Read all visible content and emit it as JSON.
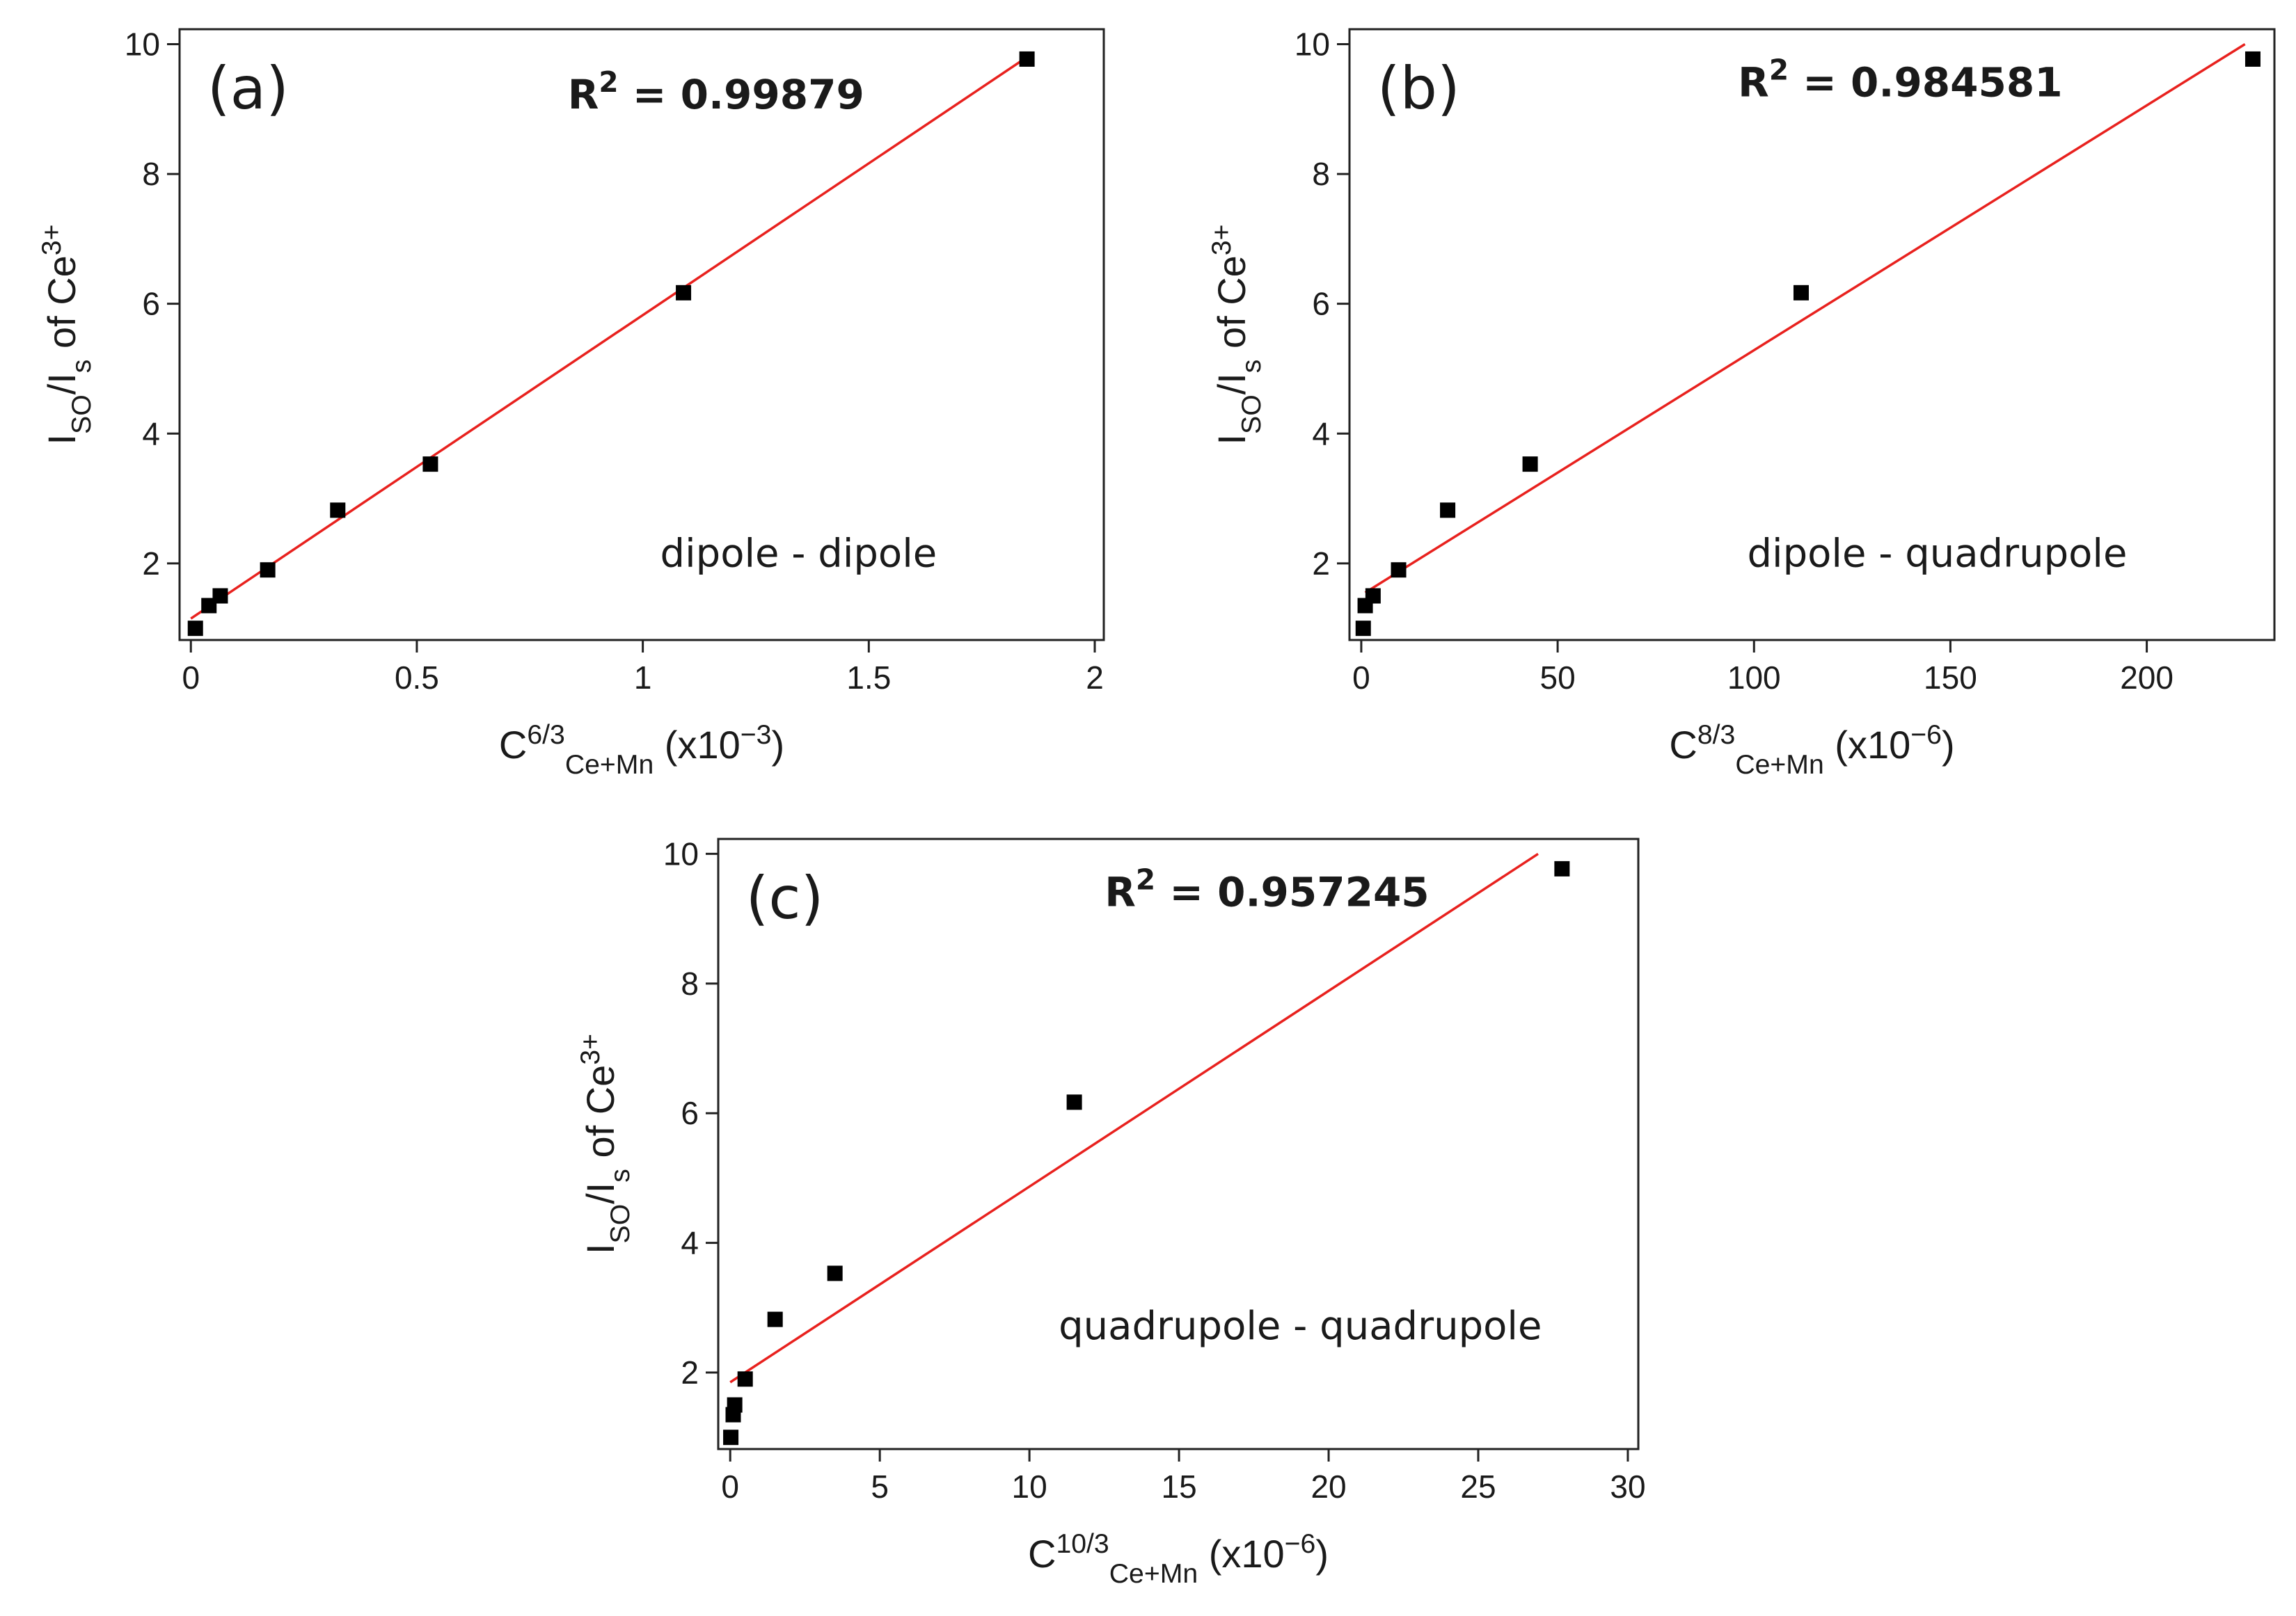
{
  "chart_data": [
    {
      "type": "scatter",
      "panel_label": "(a)",
      "r2_parts": [
        {
          "text": "R"
        },
        {
          "text": "2",
          "pos": "sup"
        },
        {
          "text": " = 0.99879"
        }
      ],
      "annotation": "dipole - dipole",
      "xlabel_parts": [
        {
          "text": "C"
        },
        {
          "text": "6/3",
          "pos": "sup"
        },
        {
          "text": "Ce+Mn",
          "pos": "sub"
        },
        {
          "text": " (x10"
        },
        {
          "text": "−3",
          "pos": "sup"
        },
        {
          "text": ")"
        }
      ],
      "ylabel_parts": [
        {
          "text": "I"
        },
        {
          "text": "SO",
          "pos": "sub"
        },
        {
          "text": "/I"
        },
        {
          "text": "s",
          "pos": "sub"
        },
        {
          "text": " of Ce"
        },
        {
          "text": "3+",
          "pos": "sup"
        }
      ],
      "x": [
        0.01,
        0.04,
        0.065,
        0.17,
        0.325,
        0.53,
        1.09,
        1.85
      ],
      "values": [
        1.0,
        1.35,
        1.5,
        1.9,
        2.82,
        3.53,
        6.17,
        9.77
      ],
      "color": "#000000",
      "fit": {
        "x": [
          0.0,
          1.85
        ],
        "y": [
          1.15,
          9.8
        ],
        "color": "#e8211e"
      },
      "xlim": [
        -0.025,
        2.02
      ],
      "ylim": [
        0.82,
        10.23
      ],
      "xticks": [
        0,
        0.5,
        1,
        1.5,
        2
      ],
      "yticks": [
        2,
        4,
        6,
        8,
        10
      ]
    },
    {
      "type": "scatter",
      "panel_label": "(b)",
      "r2_parts": [
        {
          "text": "R"
        },
        {
          "text": "2",
          "pos": "sup"
        },
        {
          "text": " = 0.984581"
        }
      ],
      "annotation": "dipole - quadrupole",
      "xlabel_parts": [
        {
          "text": "C"
        },
        {
          "text": "8/3",
          "pos": "sup"
        },
        {
          "text": "Ce+Mn",
          "pos": "sub"
        },
        {
          "text": " (x10"
        },
        {
          "text": "−6",
          "pos": "sup"
        },
        {
          "text": ")"
        }
      ],
      "ylabel_parts": [
        {
          "text": "I"
        },
        {
          "text": "SO",
          "pos": "sub"
        },
        {
          "text": "/I"
        },
        {
          "text": "s",
          "pos": "sub"
        },
        {
          "text": " of Ce"
        },
        {
          "text": "3+",
          "pos": "sup"
        }
      ],
      "x": [
        0.5,
        1,
        3,
        9.5,
        22,
        43,
        112,
        227
      ],
      "values": [
        1.0,
        1.35,
        1.5,
        1.9,
        2.82,
        3.53,
        6.17,
        9.77
      ],
      "color": "#000000",
      "fit": {
        "x": [
          1,
          225
        ],
        "y": [
          1.55,
          10.0
        ],
        "color": "#e8211e"
      },
      "xlim": [
        -3,
        232.5
      ],
      "ylim": [
        0.82,
        10.23
      ],
      "xticks": [
        0,
        50,
        100,
        150,
        200
      ],
      "yticks": [
        2,
        4,
        6,
        8,
        10
      ]
    },
    {
      "type": "scatter",
      "panel_label": "(c)",
      "r2_parts": [
        {
          "text": "R"
        },
        {
          "text": "2",
          "pos": "sup"
        },
        {
          "text": " = 0.957245"
        }
      ],
      "annotation": "quadrupole - quadrupole",
      "xlabel_parts": [
        {
          "text": "C"
        },
        {
          "text": "10/3",
          "pos": "sup"
        },
        {
          "text": "Ce+Mn",
          "pos": "sub"
        },
        {
          "text": " (x10"
        },
        {
          "text": "−6",
          "pos": "sup"
        },
        {
          "text": ")"
        }
      ],
      "ylabel_parts": [
        {
          "text": "I"
        },
        {
          "text": "SO",
          "pos": "sub"
        },
        {
          "text": "/I"
        },
        {
          "text": "s",
          "pos": "sub"
        },
        {
          "text": " of Ce"
        },
        {
          "text": "3+",
          "pos": "sup"
        }
      ],
      "x": [
        0.02,
        0.1,
        0.15,
        0.5,
        1.5,
        3.5,
        11.5,
        27.8
      ],
      "values": [
        1.0,
        1.35,
        1.5,
        1.9,
        2.82,
        3.53,
        6.17,
        9.77
      ],
      "color": "#000000",
      "fit": {
        "x": [
          0,
          27
        ],
        "y": [
          1.85,
          10.0
        ],
        "color": "#e8211e"
      },
      "xlim": [
        -0.4,
        30.35
      ],
      "ylim": [
        0.82,
        10.23
      ],
      "xticks": [
        0,
        5,
        10,
        15,
        20,
        25,
        30
      ],
      "yticks": [
        2,
        4,
        6,
        8,
        10
      ]
    }
  ]
}
